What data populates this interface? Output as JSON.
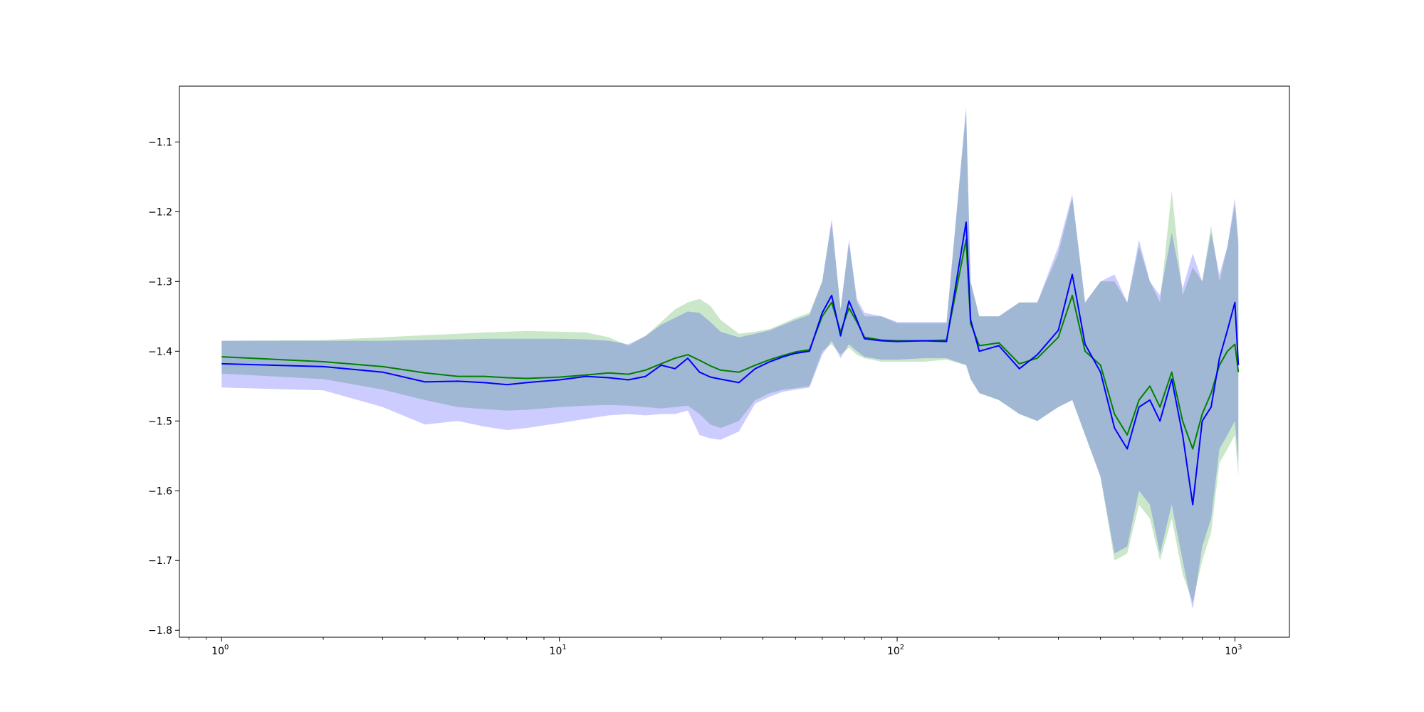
{
  "chart_data": {
    "type": "line",
    "title": "",
    "xlabel": "",
    "ylabel": "",
    "xscale": "log",
    "xlim": [
      0.75,
      1450
    ],
    "ylim": [
      -1.81,
      -1.02
    ],
    "grid": false,
    "legend": "none",
    "x_ticks": [
      {
        "base": "10",
        "exp": "0",
        "value": 1
      },
      {
        "base": "10",
        "exp": "1",
        "value": 10
      },
      {
        "base": "10",
        "exp": "2",
        "value": 100
      },
      {
        "base": "10",
        "exp": "3",
        "value": 1000
      }
    ],
    "y_ticks": [
      {
        "label": "−1.1",
        "value": -1.1
      },
      {
        "label": "−1.2",
        "value": -1.2
      },
      {
        "label": "−1.3",
        "value": -1.3
      },
      {
        "label": "−1.4",
        "value": -1.4
      },
      {
        "label": "−1.5",
        "value": -1.5
      },
      {
        "label": "−1.6",
        "value": -1.6
      },
      {
        "label": "−1.7",
        "value": -1.7
      },
      {
        "label": "−1.8",
        "value": -1.8
      }
    ],
    "series": [
      {
        "color": "#008000",
        "band_color": "#2ca02c",
        "band_opacity": 0.25,
        "x": [
          1,
          2,
          3,
          4,
          5,
          6,
          7,
          8,
          10,
          12,
          14,
          16,
          18,
          20,
          22,
          24,
          26,
          28,
          30,
          34,
          38,
          42,
          46,
          50,
          55,
          60,
          64,
          68,
          72,
          76,
          80,
          90,
          100,
          120,
          140,
          160,
          165,
          175,
          200,
          230,
          260,
          300,
          330,
          360,
          400,
          440,
          480,
          520,
          560,
          600,
          650,
          700,
          750,
          800,
          850,
          900,
          950,
          1000,
          1024
        ],
        "y": [
          -1.408,
          -1.415,
          -1.422,
          -1.431,
          -1.436,
          -1.436,
          -1.438,
          -1.439,
          -1.437,
          -1.434,
          -1.431,
          -1.433,
          -1.427,
          -1.418,
          -1.41,
          -1.405,
          -1.413,
          -1.421,
          -1.427,
          -1.43,
          -1.42,
          -1.412,
          -1.406,
          -1.401,
          -1.398,
          -1.35,
          -1.33,
          -1.372,
          -1.338,
          -1.358,
          -1.38,
          -1.384,
          -1.385,
          -1.385,
          -1.384,
          -1.24,
          -1.36,
          -1.392,
          -1.388,
          -1.418,
          -1.41,
          -1.38,
          -1.32,
          -1.4,
          -1.42,
          -1.49,
          -1.52,
          -1.47,
          -1.45,
          -1.48,
          -1.43,
          -1.5,
          -1.54,
          -1.49,
          -1.46,
          -1.42,
          -1.4,
          -1.39,
          -1.43
        ],
        "upper": [
          -1.385,
          -1.384,
          -1.38,
          -1.377,
          -1.375,
          -1.373,
          -1.372,
          -1.371,
          -1.372,
          -1.373,
          -1.38,
          -1.392,
          -1.378,
          -1.358,
          -1.34,
          -1.33,
          -1.325,
          -1.335,
          -1.355,
          -1.375,
          -1.372,
          -1.368,
          -1.36,
          -1.352,
          -1.345,
          -1.3,
          -1.215,
          -1.34,
          -1.245,
          -1.33,
          -1.35,
          -1.35,
          -1.36,
          -1.36,
          -1.36,
          -1.055,
          -1.3,
          -1.35,
          -1.35,
          -1.33,
          -1.33,
          -1.26,
          -1.18,
          -1.33,
          -1.3,
          -1.3,
          -1.33,
          -1.25,
          -1.3,
          -1.33,
          -1.17,
          -1.32,
          -1.28,
          -1.3,
          -1.22,
          -1.3,
          -1.25,
          -1.19,
          -1.25
        ],
        "lower": [
          -1.432,
          -1.44,
          -1.455,
          -1.47,
          -1.48,
          -1.483,
          -1.485,
          -1.484,
          -1.48,
          -1.478,
          -1.477,
          -1.478,
          -1.48,
          -1.482,
          -1.48,
          -1.478,
          -1.49,
          -1.505,
          -1.51,
          -1.5,
          -1.47,
          -1.46,
          -1.455,
          -1.453,
          -1.45,
          -1.4,
          -1.39,
          -1.405,
          -1.395,
          -1.405,
          -1.41,
          -1.415,
          -1.415,
          -1.415,
          -1.412,
          -1.42,
          -1.44,
          -1.46,
          -1.47,
          -1.49,
          -1.5,
          -1.48,
          -1.47,
          -1.52,
          -1.58,
          -1.7,
          -1.69,
          -1.62,
          -1.64,
          -1.7,
          -1.64,
          -1.72,
          -1.76,
          -1.7,
          -1.66,
          -1.56,
          -1.54,
          -1.52,
          -1.58
        ]
      },
      {
        "color": "#0000ff",
        "band_color": "#0000ff",
        "band_opacity": 0.2,
        "x": [
          1,
          2,
          3,
          4,
          5,
          6,
          7,
          8,
          10,
          12,
          14,
          16,
          18,
          20,
          22,
          24,
          26,
          28,
          30,
          34,
          38,
          42,
          46,
          50,
          55,
          60,
          64,
          68,
          72,
          76,
          80,
          90,
          100,
          120,
          140,
          160,
          165,
          175,
          200,
          230,
          260,
          300,
          330,
          360,
          400,
          440,
          480,
          520,
          560,
          600,
          650,
          700,
          750,
          800,
          850,
          900,
          950,
          1000,
          1024
        ],
        "y": [
          -1.418,
          -1.422,
          -1.43,
          -1.444,
          -1.443,
          -1.445,
          -1.448,
          -1.445,
          -1.441,
          -1.436,
          -1.438,
          -1.441,
          -1.436,
          -1.42,
          -1.425,
          -1.41,
          -1.43,
          -1.437,
          -1.44,
          -1.445,
          -1.425,
          -1.415,
          -1.408,
          -1.403,
          -1.4,
          -1.345,
          -1.32,
          -1.378,
          -1.328,
          -1.355,
          -1.382,
          -1.385,
          -1.386,
          -1.385,
          -1.386,
          -1.215,
          -1.355,
          -1.4,
          -1.392,
          -1.425,
          -1.405,
          -1.37,
          -1.29,
          -1.39,
          -1.43,
          -1.51,
          -1.54,
          -1.48,
          -1.47,
          -1.5,
          -1.44,
          -1.52,
          -1.62,
          -1.5,
          -1.48,
          -1.41,
          -1.37,
          -1.33,
          -1.42
        ],
        "upper": [
          -1.385,
          -1.385,
          -1.385,
          -1.384,
          -1.383,
          -1.382,
          -1.382,
          -1.382,
          -1.382,
          -1.383,
          -1.385,
          -1.39,
          -1.378,
          -1.362,
          -1.352,
          -1.343,
          -1.345,
          -1.358,
          -1.372,
          -1.38,
          -1.375,
          -1.37,
          -1.362,
          -1.355,
          -1.348,
          -1.3,
          -1.21,
          -1.34,
          -1.24,
          -1.325,
          -1.345,
          -1.35,
          -1.358,
          -1.358,
          -1.358,
          -1.05,
          -1.3,
          -1.35,
          -1.35,
          -1.33,
          -1.33,
          -1.25,
          -1.175,
          -1.33,
          -1.3,
          -1.29,
          -1.33,
          -1.24,
          -1.3,
          -1.32,
          -1.23,
          -1.31,
          -1.26,
          -1.3,
          -1.23,
          -1.29,
          -1.25,
          -1.18,
          -1.24
        ],
        "lower": [
          -1.452,
          -1.456,
          -1.48,
          -1.505,
          -1.5,
          -1.508,
          -1.513,
          -1.51,
          -1.503,
          -1.497,
          -1.492,
          -1.49,
          -1.492,
          -1.49,
          -1.49,
          -1.485,
          -1.52,
          -1.525,
          -1.527,
          -1.515,
          -1.475,
          -1.465,
          -1.458,
          -1.455,
          -1.452,
          -1.405,
          -1.385,
          -1.41,
          -1.39,
          -1.4,
          -1.408,
          -1.412,
          -1.412,
          -1.41,
          -1.41,
          -1.42,
          -1.44,
          -1.46,
          -1.47,
          -1.49,
          -1.5,
          -1.48,
          -1.47,
          -1.52,
          -1.58,
          -1.69,
          -1.68,
          -1.6,
          -1.62,
          -1.69,
          -1.62,
          -1.7,
          -1.77,
          -1.68,
          -1.64,
          -1.54,
          -1.52,
          -1.5,
          -1.56
        ]
      }
    ]
  }
}
